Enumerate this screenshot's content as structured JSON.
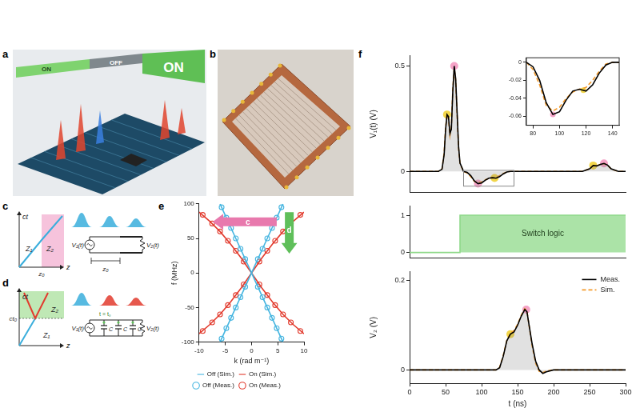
{
  "panels": [
    {
      "label": "a",
      "switch_labels": [
        "ON",
        "OFF",
        "ON"
      ]
    },
    {
      "label": "b"
    },
    {
      "label": "c",
      "spacetime": {
        "y_axis": "ct",
        "x_axis": "z",
        "regions": [
          "Z₁",
          "Z₂"
        ],
        "boundary": "z₀"
      },
      "circuit": {
        "source": "V₁(t)",
        "load": "V₂(t)",
        "length": "z₀"
      }
    },
    {
      "label": "d",
      "spacetime": {
        "y_axis": "ct",
        "x_axis": "z",
        "regions": [
          "Z₁",
          "Z₂"
        ],
        "boundary": "ct₀"
      },
      "circuit": {
        "source": "V₁(t)",
        "load": "V₂(t)",
        "capacitor": "C",
        "switch": "t = t₀"
      }
    }
  ],
  "chart_data": [
    {
      "panel": "e",
      "type": "scatter",
      "x_label": "k (rad m⁻¹)",
      "y_label": "f (MHz)",
      "xlim": [
        -10,
        10
      ],
      "xticks": [
        -10,
        -5,
        0,
        5,
        10
      ],
      "ylim": [
        -100,
        100
      ],
      "yticks": [
        -100,
        -50,
        0,
        50,
        100
      ],
      "grid": false,
      "legend": "bottom",
      "annotations": [
        {
          "text": "c",
          "color": "#e879ad"
        },
        {
          "text": "d",
          "color": "#5fbf5a"
        }
      ],
      "series": [
        {
          "name": "Off (Sim.)",
          "color": "#45b5e0",
          "line_style": "solid",
          "x": [
            -6,
            -3,
            0,
            3,
            6,
            0,
            -6,
            -3,
            0,
            3,
            6
          ],
          "values": [
            -100,
            -50,
            0,
            50,
            100,
            null,
            100,
            50,
            0,
            -50,
            -100
          ]
        },
        {
          "name": "On (Sim.)",
          "color": "#e23b2e",
          "line_style": "solid",
          "x": [
            -10,
            -8,
            -6,
            -4,
            -2,
            0,
            2,
            4,
            6,
            8,
            10,
            0,
            -10,
            -8,
            -6,
            -4,
            -2,
            0,
            2,
            4,
            6,
            8,
            10
          ],
          "values": [
            -88,
            -75,
            -60,
            -42,
            -22,
            0,
            22,
            42,
            60,
            75,
            88,
            null,
            88,
            75,
            60,
            42,
            22,
            0,
            -22,
            -42,
            -60,
            -75,
            -88
          ]
        },
        {
          "name": "Off (Meas.)",
          "color": "#45b5e0",
          "marker": "circle",
          "x": [
            -5.7,
            -4.8,
            -3.9,
            -3,
            -2.1,
            -1.2,
            1.2,
            2.1,
            3,
            3.9,
            4.8,
            5.7,
            -5.7,
            -4.8,
            -3.9,
            -3,
            -2.1,
            -1.2,
            1.2,
            2.1,
            3,
            3.9,
            4.8,
            5.7
          ],
          "values": [
            -95,
            -80,
            -65,
            -50,
            -35,
            -20,
            20,
            35,
            50,
            65,
            80,
            95,
            95,
            80,
            65,
            50,
            35,
            20,
            -20,
            -35,
            -50,
            -65,
            -80,
            -95
          ]
        },
        {
          "name": "On (Meas.)",
          "color": "#e23b2e",
          "marker": "circle",
          "x": [
            -9.3,
            -7.5,
            -6,
            -4.5,
            -3,
            -1.5,
            1.5,
            3,
            4.5,
            6,
            7.5,
            9.3,
            -9.3,
            -7.5,
            -6,
            -4.5,
            -3,
            -1.5,
            1.5,
            3,
            4.5,
            6,
            7.5,
            9.3
          ],
          "values": [
            -84,
            -71.5,
            -60,
            -46.5,
            -32,
            -16.5,
            16.5,
            32,
            46.5,
            60,
            71.5,
            84,
            84,
            71.5,
            60,
            46.5,
            32,
            16.5,
            -16.5,
            -32,
            -46.5,
            -60,
            -71.5,
            -84
          ]
        }
      ]
    },
    {
      "panel": "f",
      "type": "line",
      "y_label": "V₁(t) (V)",
      "xlim": [
        0,
        300
      ],
      "ylim": [
        -0.1,
        0.55
      ],
      "yticks": [
        0,
        0.5
      ],
      "grid": false,
      "tick_labels": "y",
      "series": [
        {
          "color": "#000000",
          "line_style": "solid",
          "x": [
            0,
            40,
            45,
            48,
            50,
            52,
            54,
            56,
            58,
            60,
            62,
            64,
            66,
            68,
            70,
            75,
            80,
            85,
            90,
            95,
            100,
            105,
            110,
            115,
            120,
            125,
            130,
            135,
            140,
            150,
            200,
            240,
            250,
            255,
            260,
            265,
            270,
            275,
            280,
            290,
            300
          ],
          "values": [
            0,
            0,
            0.01,
            0.08,
            0.2,
            0.27,
            0.26,
            0.18,
            0.2,
            0.38,
            0.5,
            0.44,
            0.28,
            0.12,
            0.04,
            0,
            -0.005,
            -0.02,
            -0.045,
            -0.058,
            -0.055,
            -0.042,
            -0.032,
            -0.03,
            -0.032,
            -0.025,
            -0.012,
            -0.003,
            0,
            0,
            0,
            0,
            0.012,
            0.028,
            0.026,
            0.033,
            0.038,
            0.03,
            0.012,
            0,
            0
          ]
        },
        {
          "color": "#f39a2b",
          "line_style": "dashed",
          "x": [
            0,
            40,
            45,
            48,
            50,
            52,
            54,
            56,
            58,
            60,
            62,
            64,
            66,
            68,
            70,
            75,
            80,
            85,
            90,
            95,
            100,
            105,
            110,
            115,
            120,
            125,
            130,
            135,
            140,
            150,
            200,
            240,
            250,
            255,
            260,
            265,
            270,
            275,
            280,
            290,
            300
          ],
          "values": [
            0,
            0,
            0.012,
            0.09,
            0.21,
            0.27,
            0.25,
            0.17,
            0.21,
            0.39,
            0.49,
            0.43,
            0.27,
            0.11,
            0.035,
            0,
            -0.008,
            -0.025,
            -0.048,
            -0.054,
            -0.05,
            -0.04,
            -0.033,
            -0.03,
            -0.028,
            -0.02,
            -0.01,
            -0.002,
            0,
            0,
            0,
            0,
            0.013,
            0.027,
            0.027,
            0.034,
            0.037,
            0.029,
            0.011,
            0,
            0
          ]
        }
      ],
      "points": [
        {
          "x": 52,
          "y": 0.27,
          "color": "#f2d64b"
        },
        {
          "x": 62,
          "y": 0.5,
          "color": "#f5a3c7"
        },
        {
          "x": 95,
          "y": -0.058,
          "color": "#f5a3c7"
        },
        {
          "x": 118,
          "y": -0.031,
          "color": "#f2d64b"
        },
        {
          "x": 255,
          "y": 0.028,
          "color": "#f2d64b"
        },
        {
          "x": 270,
          "y": 0.038,
          "color": "#f5a3c7"
        }
      ]
    },
    {
      "panel": "f",
      "type": "line",
      "xlim": [
        75,
        145
      ],
      "xticks": [
        80,
        100,
        120,
        140
      ],
      "ylim": [
        -0.07,
        0.005
      ],
      "yticks": [
        -0.06,
        -0.04,
        -0.02,
        0
      ],
      "grid": false,
      "series": [
        {
          "color": "#000000",
          "line_style": "solid",
          "x": [
            75,
            80,
            85,
            90,
            95,
            100,
            105,
            110,
            115,
            120,
            125,
            130,
            135,
            140,
            145
          ],
          "values": [
            0,
            -0.005,
            -0.02,
            -0.045,
            -0.058,
            -0.055,
            -0.042,
            -0.032,
            -0.03,
            -0.032,
            -0.025,
            -0.012,
            -0.003,
            0,
            0
          ]
        },
        {
          "color": "#f39a2b",
          "line_style": "dashed",
          "x": [
            75,
            80,
            85,
            90,
            95,
            100,
            105,
            110,
            115,
            120,
            125,
            130,
            135,
            140,
            145
          ],
          "values": [
            0,
            -0.008,
            -0.025,
            -0.048,
            -0.054,
            -0.05,
            -0.04,
            -0.033,
            -0.03,
            -0.028,
            -0.02,
            -0.01,
            -0.002,
            0,
            0
          ]
        }
      ],
      "points": [
        {
          "x": 95,
          "y": -0.058,
          "color": "#f5a3c7"
        },
        {
          "x": 118,
          "y": -0.031,
          "color": "#f2d64b"
        }
      ]
    },
    {
      "panel": "f",
      "type": "line",
      "xlim": [
        0,
        300
      ],
      "ylim": [
        -0.15,
        1.25
      ],
      "yticks": [
        0,
        1
      ],
      "grid": false,
      "tick_labels": "y",
      "annotations": [
        {
          "text": "Switch logic"
        }
      ],
      "series": [
        {
          "color": "#8fd98a",
          "line_style": "solid",
          "x": [
            0,
            70,
            70,
            300
          ],
          "values": [
            0,
            0,
            1,
            1
          ]
        }
      ]
    },
    {
      "panel": "f",
      "type": "line",
      "x_label": "t (ns)",
      "y_label": "V₂ (V)",
      "xlim": [
        0,
        300
      ],
      "xticks": [
        0,
        50,
        100,
        150,
        200,
        250,
        300
      ],
      "ylim": [
        -0.03,
        0.22
      ],
      "yticks": [
        0,
        0.2
      ],
      "grid": false,
      "legend": "top-right",
      "series": [
        {
          "name": "Meas.",
          "color": "#000000",
          "line_style": "solid",
          "x": [
            0,
            100,
            120,
            125,
            130,
            135,
            140,
            145,
            150,
            155,
            160,
            163,
            166,
            170,
            175,
            180,
            185,
            190,
            200,
            250,
            300
          ],
          "values": [
            0,
            0,
            0,
            0.005,
            0.03,
            0.065,
            0.08,
            0.085,
            0.1,
            0.12,
            0.135,
            0.13,
            0.1,
            0.06,
            0.02,
            0,
            -0.008,
            -0.004,
            0,
            0,
            0
          ]
        },
        {
          "name": "Sim.",
          "color": "#f39a2b",
          "line_style": "dashed",
          "x": [
            0,
            100,
            120,
            125,
            130,
            135,
            140,
            145,
            150,
            155,
            160,
            163,
            166,
            170,
            175,
            180,
            185,
            190,
            200,
            250,
            300
          ],
          "values": [
            0,
            0,
            0,
            0.006,
            0.032,
            0.066,
            0.082,
            0.088,
            0.102,
            0.122,
            0.137,
            0.132,
            0.098,
            0.055,
            0.015,
            -0.003,
            -0.006,
            -0.002,
            0,
            0,
            0
          ]
        }
      ],
      "points": [
        {
          "x": 140,
          "y": 0.08,
          "color": "#f2d64b"
        },
        {
          "x": 162,
          "y": 0.135,
          "color": "#f5a3c7"
        }
      ]
    }
  ]
}
